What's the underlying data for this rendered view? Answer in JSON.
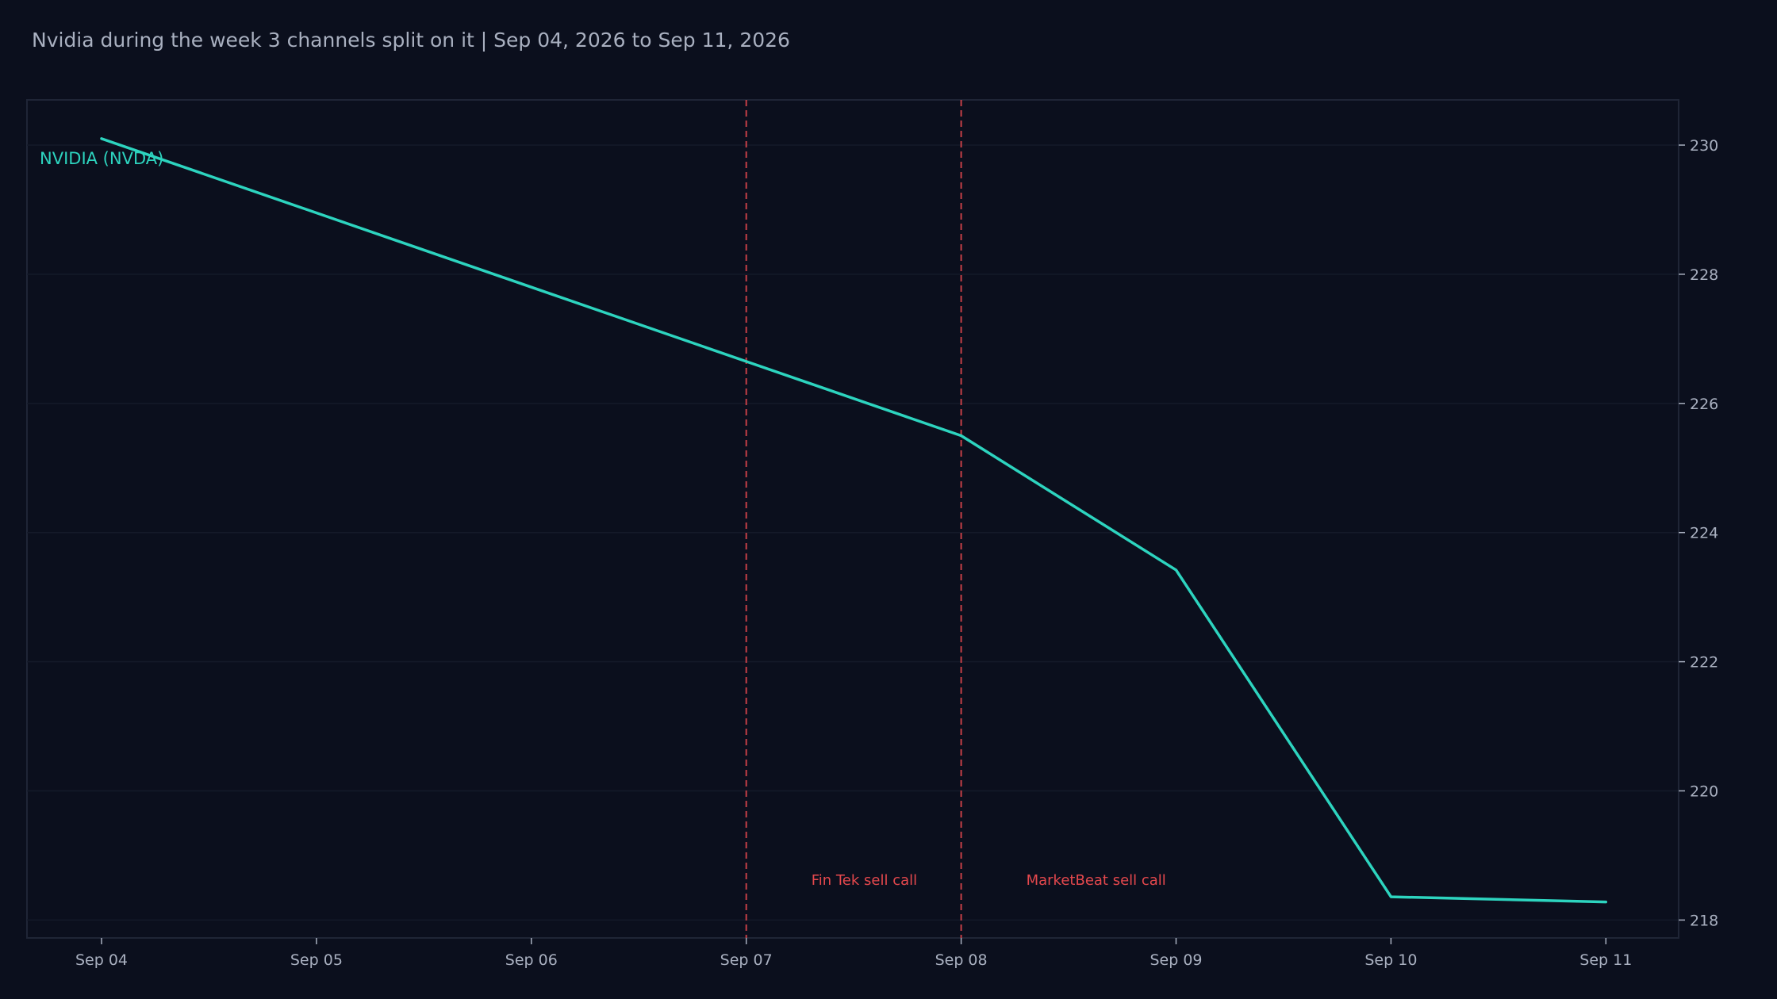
{
  "chart_data": {
    "type": "line",
    "title": "Nvidia during the week 3 channels split on it | Sep 04, 2026 to Sep 11, 2026",
    "xlabel": "",
    "ylabel": "",
    "categories": [
      "Sep 04",
      "Sep 05",
      "Sep 06",
      "Sep 07",
      "Sep 08",
      "Sep 09",
      "Sep 10",
      "Sep 11"
    ],
    "series": [
      {
        "name": "NVIDIA (NVDA)",
        "values": [
          230.1,
          228.95,
          227.8,
          226.65,
          225.5,
          223.42,
          218.36,
          218.28
        ],
        "color": "#2dd4bf"
      }
    ],
    "ylim": [
      217.7,
      230.7
    ],
    "yticks": [
      218,
      220,
      222,
      224,
      226,
      228,
      230
    ],
    "y_axis_position": "right",
    "grid": true,
    "legend": "none",
    "annotations": [
      {
        "x": "Sep 07",
        "label": "Fin Tek sell call",
        "color": "#e5484d",
        "style": "dashed-vertical"
      },
      {
        "x": "Sep 08",
        "label": "MarketBeat sell call",
        "color": "#e5484d",
        "style": "dashed-vertical"
      }
    ],
    "colors": {
      "background": "#0b0f1d",
      "plot_background": "#0b0f1d",
      "frame": "#1f2536",
      "grid": "#141a29",
      "text": "#a9b0c0",
      "tick": "#a9b0c0",
      "annotation": "#e5484d"
    }
  }
}
